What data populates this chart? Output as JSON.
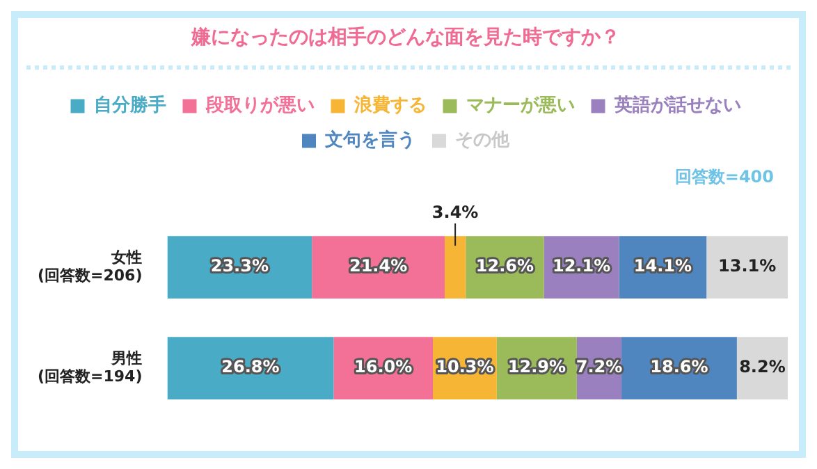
{
  "chart_data": {
    "type": "bar",
    "orientation": "horizontal",
    "stacked": true,
    "title": "嫌になったのは相手のどんな面を見た時ですか？",
    "categories": [
      "女性\n(回答数=206)",
      "男性\n(回答数=194)"
    ],
    "series": [
      {
        "name": "自分勝手",
        "color": "#4aabc6",
        "values": [
          23.3,
          26.8
        ],
        "value_labels": [
          "23.3%",
          "26.8%"
        ]
      },
      {
        "name": "段取りが悪い",
        "color": "#f37096",
        "values": [
          21.4,
          16.0
        ],
        "value_labels": [
          "21.4%",
          "16.0%"
        ]
      },
      {
        "name": "浪費する",
        "color": "#f6b535",
        "values": [
          3.4,
          10.3
        ],
        "value_labels": [
          "3.4%",
          "10.3%"
        ]
      },
      {
        "name": "マナーが悪い",
        "color": "#9bba59",
        "values": [
          12.6,
          12.9
        ],
        "value_labels": [
          "12.6%",
          "12.9%"
        ]
      },
      {
        "name": "英語が話せない",
        "color": "#9a80bf",
        "values": [
          12.1,
          7.2
        ],
        "value_labels": [
          "12.1%",
          "7.2%"
        ]
      },
      {
        "name": "文句を言う",
        "color": "#5086c0",
        "values": [
          14.1,
          18.6
        ],
        "value_labels": [
          "14.1%",
          "18.6%"
        ]
      },
      {
        "name": "その他",
        "color": "#d9d9d9",
        "values": [
          13.1,
          8.2
        ],
        "value_labels": [
          "13.1%",
          "8.2%"
        ]
      }
    ],
    "annotations": [
      "回答数=400"
    ],
    "legend": "top"
  }
}
